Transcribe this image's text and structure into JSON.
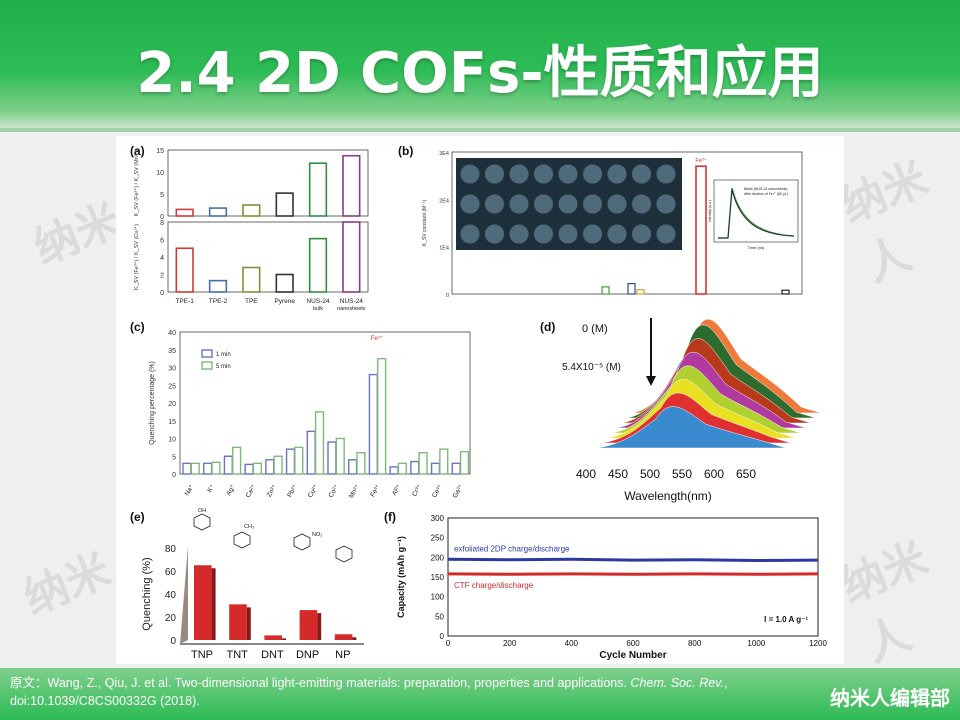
{
  "slide": {
    "title": "2.4 2D COFs-性质和应用",
    "watermark": "纳米人",
    "citation_prefix": "原文：Wang, Z., Qiu, J. et al. Two-dimensional light-emitting materials: preparation, properties and applications. ",
    "citation_journal": "Chem. Soc. Rev.",
    "citation_suffix": ", doi:10.1039/C8CS00332G (2018).",
    "brand": "纳米人编辑部",
    "colors": {
      "header_green": "#2dbb55",
      "white": "#ffffff"
    }
  },
  "panels": {
    "a_label": "(a)",
    "b_label": "(b)",
    "c_label": "(c)",
    "d_label": "(d)",
    "e_label": "(e)",
    "f_label": "(f)"
  },
  "chart_data": [
    {
      "id": "a",
      "type": "bar",
      "categories": [
        "TPE-1",
        "TPE-2",
        "TPE",
        "Pyrene",
        "NUS-24 bulk",
        "NUS-24 nanosheets"
      ],
      "subplots": [
        {
          "ylabel": "K_SV (Fe³⁺) / K_SV (Mn²⁺)",
          "ylim": [
            0,
            15
          ],
          "ticks": [
            "0",
            "5",
            "10",
            "15"
          ],
          "values": [
            1.5,
            1.8,
            2.5,
            5.2,
            12,
            13.7
          ]
        },
        {
          "ylabel": "K_SV (Fe³⁺) / K_SV (Cu²⁺)",
          "ylim": [
            0,
            8
          ],
          "ticks": [
            "0",
            "2",
            "4",
            "6",
            "8"
          ],
          "values": [
            5,
            1.3,
            2.8,
            2.0,
            6.1,
            8.0
          ]
        }
      ],
      "colors": [
        "#d03a3a",
        "#4a6fa8",
        "#8a8a3a",
        "#333333",
        "#2f8f3f",
        "#8a3a8a"
      ]
    },
    {
      "id": "b",
      "type": "bar",
      "ylabel": "K_SV constant (M⁻¹)",
      "ticks": [
        "3E4",
        "2E4",
        "1E4",
        "0"
      ],
      "ylim": [
        0,
        30000
      ],
      "highlight": "Fe³⁺",
      "highlight_value": 27000,
      "inset_legend": [
        "Blank (NUS-24 nanosheets)",
        "After titration of Fe³⁺ (60 μL)"
      ],
      "inset_xlabel": "Time (ns)",
      "inset_ylabel": "Intensity (a.u.)"
    },
    {
      "id": "c",
      "type": "bar",
      "ylabel": "Quenching percentage (%)",
      "ylim": [
        0,
        40
      ],
      "ticks": [
        "0",
        "5",
        "10",
        "15",
        "20",
        "25",
        "30",
        "35",
        "40"
      ],
      "categories": [
        "Na⁺",
        "K⁺",
        "Ag⁺",
        "Ca²⁺",
        "Zn²⁺",
        "Pb²⁺",
        "Cu²⁺",
        "Co²⁺",
        "Mn²⁺",
        "Fe³⁺",
        "Al³⁺",
        "Cr³⁺",
        "Ce³⁺",
        "Ga³⁺"
      ],
      "series": [
        {
          "name": "1 min",
          "values": [
            3,
            3,
            5,
            2.7,
            4,
            7,
            12,
            9,
            4,
            28,
            2,
            3.5,
            3,
            3
          ]
        },
        {
          "name": "5 min",
          "values": [
            3,
            3.3,
            7.5,
            3,
            5,
            7.5,
            17.5,
            10,
            6,
            32.5,
            3,
            6,
            7,
            6.3
          ]
        }
      ],
      "annotation": "Fe³⁺"
    },
    {
      "id": "d",
      "type": "area",
      "xlabel": "Wavelength(nm)",
      "xticks": [
        "400",
        "450",
        "500",
        "550",
        "600",
        "650"
      ],
      "annotations": [
        "0 (M)",
        "5.4X10⁻⁵ (M)"
      ],
      "series_colors": [
        "#f07a3a",
        "#2e6b2e",
        "#b83a1a",
        "#b03aa0",
        "#b0d030",
        "#e8e020",
        "#e03030",
        "#3a8ad0"
      ]
    },
    {
      "id": "e",
      "type": "bar",
      "ylabel": "Quenching (%)",
      "ylim": [
        0,
        80
      ],
      "ticks": [
        "0",
        "20",
        "40",
        "60",
        "80"
      ],
      "categories": [
        "TNP",
        "TNT",
        "DNT",
        "DNP",
        "NP"
      ],
      "values": [
        65,
        31,
        4,
        26,
        5
      ],
      "molecule_labels": [
        "OH",
        "NO₂",
        "CH₃"
      ]
    },
    {
      "id": "f",
      "type": "line",
      "xlabel": "Cycle Number",
      "ylabel": "Capacity (mAh g⁻¹)",
      "xlim": [
        0,
        1200
      ],
      "ylim": [
        0,
        300
      ],
      "xticks": [
        "0",
        "200",
        "400",
        "600",
        "800",
        "1000",
        "1200"
      ],
      "yticks": [
        "0",
        "50",
        "100",
        "150",
        "200",
        "250",
        "300"
      ],
      "annotation": "I = 1.0 A g⁻¹",
      "series": [
        {
          "name": "exfoliated 2DP charge/discharge",
          "color": "#2a3aa0",
          "x": [
            0,
            200,
            400,
            600,
            800,
            1000,
            1200
          ],
          "y": [
            195,
            194,
            195,
            193,
            194,
            192,
            193
          ]
        },
        {
          "name": "CTF charge/discharge",
          "color": "#d02a2a",
          "x": [
            0,
            200,
            400,
            600,
            800,
            1000,
            1200
          ],
          "y": [
            158,
            157,
            158,
            157,
            158,
            157,
            158
          ]
        }
      ]
    }
  ]
}
